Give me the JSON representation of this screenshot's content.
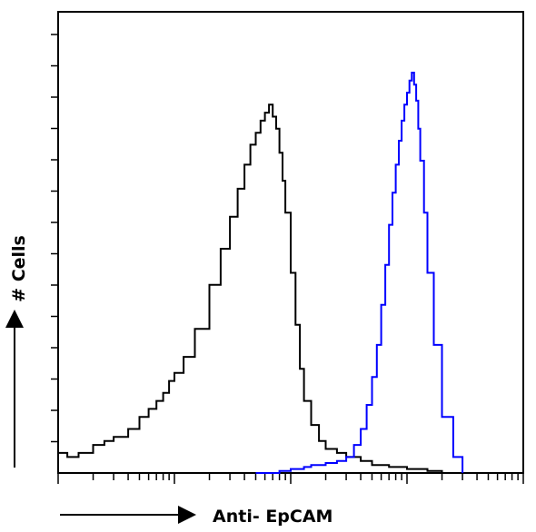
{
  "chart_data": {
    "type": "line",
    "xlabel": "Anti- EpCAM",
    "ylabel": "# Cells",
    "x_scale": "log",
    "xlim": [
      1,
      10000
    ],
    "ylim": [
      0,
      100
    ],
    "grid": false,
    "legend": "none",
    "series": [
      {
        "color": "#000000",
        "x": [
          1.0,
          1.2,
          1.5,
          2.0,
          2.5,
          3.0,
          4.0,
          5.0,
          6.0,
          7.0,
          8.0,
          9.0,
          10,
          12,
          15,
          20,
          25,
          30,
          35,
          40,
          45,
          50,
          55,
          60,
          65,
          70,
          75,
          80,
          85,
          90,
          100,
          110,
          120,
          130,
          150,
          175,
          200,
          250,
          300,
          400,
          500,
          700,
          1000,
          1500,
          2000
        ],
        "y": [
          5,
          4,
          5,
          7,
          8,
          9,
          11,
          14,
          16,
          18,
          20,
          23,
          25,
          29,
          36,
          47,
          56,
          64,
          71,
          77,
          82,
          85,
          88,
          90,
          92,
          89,
          86,
          80,
          73,
          65,
          50,
          37,
          26,
          18,
          12,
          8,
          6,
          5,
          4,
          3,
          2,
          1.5,
          1,
          0.5,
          0
        ]
      },
      {
        "color": "#0000ff",
        "x": [
          50,
          80,
          100,
          130,
          150,
          200,
          250,
          300,
          350,
          400,
          450,
          500,
          550,
          600,
          650,
          700,
          750,
          800,
          850,
          900,
          950,
          1000,
          1050,
          1100,
          1150,
          1200,
          1250,
          1300,
          1400,
          1500,
          1700,
          2000,
          2500,
          3000
        ],
        "y": [
          0,
          0.5,
          1,
          1.5,
          2,
          2.5,
          3,
          4,
          7,
          11,
          17,
          24,
          32,
          42,
          52,
          62,
          70,
          77,
          83,
          88,
          92,
          95,
          98,
          100,
          97,
          93,
          86,
          78,
          65,
          50,
          32,
          14,
          4,
          0
        ]
      }
    ]
  }
}
